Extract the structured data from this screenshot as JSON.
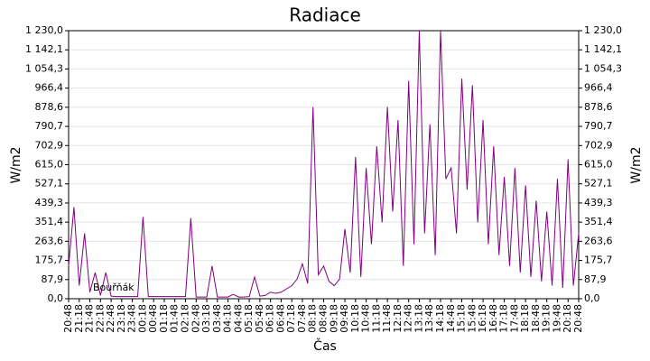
{
  "chart_data": {
    "type": "line",
    "title": "Radiace",
    "xlabel": "Čas",
    "ylabel": "W/m2",
    "y2label": "W/m2",
    "categories": [
      "20:48",
      null,
      "21:18",
      null,
      "21:48",
      null,
      "22:18",
      null,
      "22:48",
      null,
      "23:18",
      null,
      "23:48",
      null,
      "00:18",
      null,
      "00:48",
      null,
      "01:18",
      null,
      "01:48",
      null,
      "02:18",
      null,
      "02:48",
      null,
      "03:18",
      null,
      "03:48",
      null,
      "04:18",
      null,
      "04:48",
      null,
      "05:18",
      null,
      "05:48",
      null,
      "06:18",
      null,
      "06:48",
      null,
      "07:18",
      null,
      "07:48",
      null,
      "08:18",
      null,
      "08:48",
      null,
      "09:18",
      null,
      "09:48",
      null,
      "10:18",
      null,
      "10:48",
      null,
      "11:18",
      null,
      "11:48",
      null,
      "12:18",
      null,
      "12:48",
      null,
      "13:18",
      null,
      "13:48",
      null,
      "14:18",
      null,
      "14:48",
      null,
      "15:18",
      null,
      "15:48",
      null,
      "16:18",
      null,
      "16:48",
      null,
      "17:18",
      null,
      "17:48",
      null,
      "18:18",
      null,
      "18:48",
      null,
      "19:18",
      null,
      "19:48",
      null,
      "20:18",
      null,
      "20:48"
    ],
    "series": [
      {
        "name": "Bouřňák",
        "color": "#800080",
        "values": [
          150,
          420,
          60,
          300,
          30,
          120,
          15,
          120,
          12,
          10,
          10,
          10,
          10,
          10,
          375,
          10,
          10,
          10,
          10,
          10,
          10,
          10,
          10,
          370,
          8,
          8,
          8,
          150,
          8,
          8,
          8,
          20,
          8,
          8,
          10,
          100,
          12,
          15,
          30,
          25,
          30,
          45,
          60,
          90,
          160,
          70,
          880,
          110,
          150,
          80,
          60,
          90,
          320,
          120,
          650,
          100,
          600,
          250,
          700,
          350,
          880,
          400,
          820,
          150,
          1000,
          250,
          1230,
          300,
          800,
          200,
          1230,
          550,
          600,
          300,
          1010,
          500,
          980,
          350,
          820,
          250,
          700,
          200,
          560,
          150,
          600,
          120,
          520,
          100,
          450,
          80,
          400,
          60,
          550,
          50,
          640,
          60,
          300
        ]
      }
    ],
    "ylim": [
      0,
      1230
    ],
    "yticks": [
      {
        "value": 0,
        "label": "0,0"
      },
      {
        "value": 87.9,
        "label": "87,9"
      },
      {
        "value": 175.7,
        "label": "175,7"
      },
      {
        "value": 263.6,
        "label": "263,6"
      },
      {
        "value": 351.4,
        "label": "351,4"
      },
      {
        "value": 439.3,
        "label": "439,3"
      },
      {
        "value": 527.1,
        "label": "527,1"
      },
      {
        "value": 615,
        "label": "615,0"
      },
      {
        "value": 702.9,
        "label": "702,9"
      },
      {
        "value": 790.7,
        "label": "790,7"
      },
      {
        "value": 878.6,
        "label": "878,6"
      },
      {
        "value": 966.4,
        "label": "966,4"
      },
      {
        "value": 1054.3,
        "label": "1 054,3"
      },
      {
        "value": 1142.1,
        "label": "1 142,1"
      },
      {
        "value": 1230,
        "label": "1 230,0"
      }
    ],
    "y2lim": [
      0,
      1230
    ],
    "y2ticks": [
      {
        "value": 0,
        "label": "0,0"
      },
      {
        "value": 87.9,
        "label": "87,9"
      },
      {
        "value": 175.7,
        "label": "175,7"
      },
      {
        "value": 263.6,
        "label": "263,6"
      },
      {
        "value": 351.4,
        "label": "351,4"
      },
      {
        "value": 439.3,
        "label": "439,3"
      },
      {
        "value": 527.1,
        "label": "527,1"
      },
      {
        "value": 615,
        "label": "615,0"
      },
      {
        "value": 702.9,
        "label": "702,9"
      },
      {
        "value": 790.7,
        "label": "790,7"
      },
      {
        "value": 878.6,
        "label": "878,6"
      },
      {
        "value": 966.4,
        "label": "966,4"
      },
      {
        "value": 1054.3,
        "label": "1 054,3"
      },
      {
        "value": 1142.1,
        "label": "1 142,1"
      },
      {
        "value": 1230,
        "label": "1 230,0"
      }
    ],
    "grid": true
  }
}
